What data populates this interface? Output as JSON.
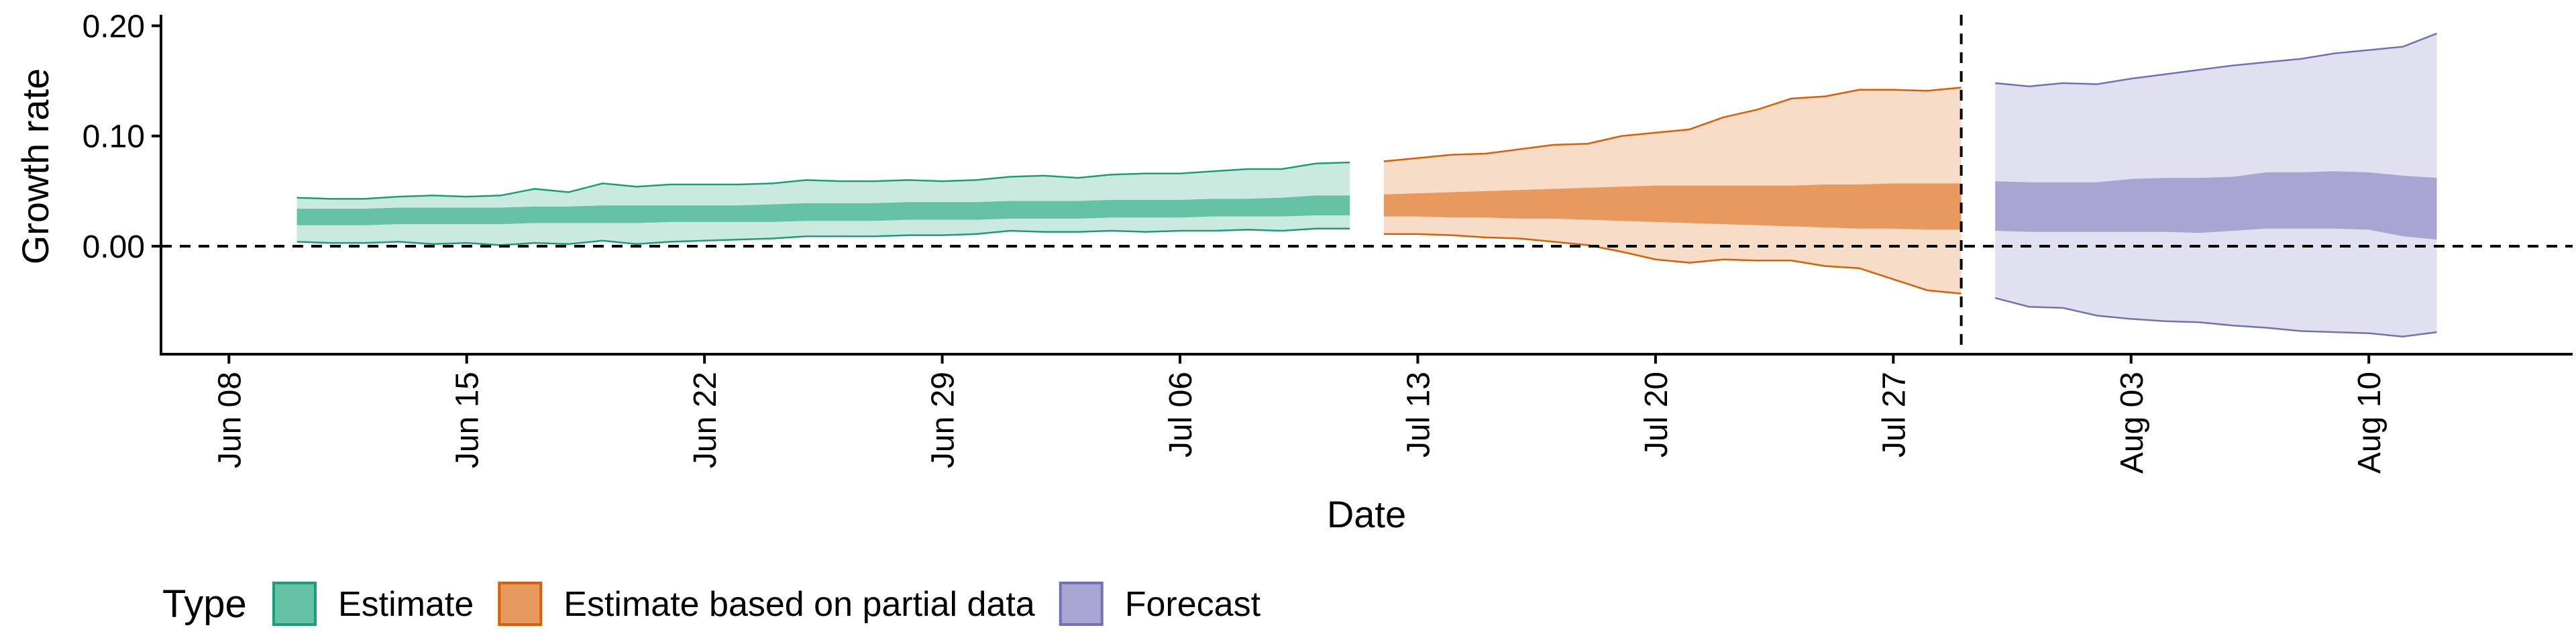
{
  "chart_data": {
    "type": "area",
    "title": "",
    "xlabel": "Date",
    "ylabel": "Growth rate",
    "x_range": [
      "2020-06-06",
      "2020-08-16"
    ],
    "ylim": [
      -0.098,
      0.21
    ],
    "y_ticks": [
      0.0,
      0.1,
      0.2
    ],
    "y_tick_labels": [
      "0.00",
      "0.10",
      "0.20"
    ],
    "x_ticks": [
      "2020-06-08",
      "2020-06-15",
      "2020-06-22",
      "2020-06-29",
      "2020-07-06",
      "2020-07-13",
      "2020-07-20",
      "2020-07-27",
      "2020-08-03",
      "2020-08-10"
    ],
    "x_tick_labels": [
      "Jun 08",
      "Jun 15",
      "Jun 22",
      "Jun 29",
      "Jul 06",
      "Jul 13",
      "Jul 20",
      "Jul 27",
      "Aug 03",
      "Aug 10"
    ],
    "reference_lines": {
      "horizontal_y": 0.0,
      "vertical_date": "2020-07-29"
    },
    "grid": false,
    "legend": {
      "title": "Type",
      "position": "bottom-left"
    },
    "series": [
      {
        "name": "Estimate",
        "fill_color": "#66C2A5",
        "line_color": "#1B9E77",
        "x": [
          "2020-06-10",
          "2020-06-11",
          "2020-06-12",
          "2020-06-13",
          "2020-06-14",
          "2020-06-15",
          "2020-06-16",
          "2020-06-17",
          "2020-06-18",
          "2020-06-19",
          "2020-06-20",
          "2020-06-21",
          "2020-06-22",
          "2020-06-23",
          "2020-06-24",
          "2020-06-25",
          "2020-06-26",
          "2020-06-27",
          "2020-06-28",
          "2020-06-29",
          "2020-06-30",
          "2020-07-01",
          "2020-07-02",
          "2020-07-03",
          "2020-07-04",
          "2020-07-05",
          "2020-07-06",
          "2020-07-07",
          "2020-07-08",
          "2020-07-09",
          "2020-07-10",
          "2020-07-11"
        ],
        "upper_90": [
          0.044,
          0.043,
          0.043,
          0.045,
          0.046,
          0.045,
          0.046,
          0.052,
          0.049,
          0.057,
          0.054,
          0.056,
          0.056,
          0.056,
          0.057,
          0.06,
          0.059,
          0.059,
          0.06,
          0.059,
          0.06,
          0.063,
          0.064,
          0.062,
          0.065,
          0.066,
          0.066,
          0.068,
          0.07,
          0.07,
          0.075,
          0.076
        ],
        "upper_50": [
          0.034,
          0.034,
          0.034,
          0.035,
          0.035,
          0.035,
          0.035,
          0.036,
          0.036,
          0.037,
          0.037,
          0.037,
          0.037,
          0.037,
          0.038,
          0.039,
          0.039,
          0.039,
          0.04,
          0.04,
          0.04,
          0.041,
          0.041,
          0.041,
          0.042,
          0.042,
          0.042,
          0.043,
          0.043,
          0.044,
          0.046,
          0.046
        ],
        "lower_50": [
          0.019,
          0.019,
          0.019,
          0.02,
          0.02,
          0.02,
          0.02,
          0.021,
          0.021,
          0.021,
          0.021,
          0.022,
          0.022,
          0.022,
          0.022,
          0.023,
          0.023,
          0.023,
          0.024,
          0.024,
          0.024,
          0.025,
          0.025,
          0.025,
          0.026,
          0.026,
          0.026,
          0.027,
          0.027,
          0.027,
          0.028,
          0.028
        ],
        "lower_90": [
          0.004,
          0.003,
          0.003,
          0.004,
          0.002,
          0.003,
          0.001,
          0.003,
          0.002,
          0.005,
          0.002,
          0.004,
          0.005,
          0.006,
          0.007,
          0.009,
          0.009,
          0.009,
          0.01,
          0.01,
          0.011,
          0.014,
          0.013,
          0.013,
          0.014,
          0.013,
          0.014,
          0.014,
          0.015,
          0.014,
          0.016,
          0.016
        ]
      },
      {
        "name": "Estimate based on partial data",
        "fill_color": "#E89A5E",
        "line_color": "#D95F02",
        "x": [
          "2020-07-12",
          "2020-07-13",
          "2020-07-14",
          "2020-07-15",
          "2020-07-16",
          "2020-07-17",
          "2020-07-18",
          "2020-07-19",
          "2020-07-20",
          "2020-07-21",
          "2020-07-22",
          "2020-07-23",
          "2020-07-24",
          "2020-07-25",
          "2020-07-26",
          "2020-07-27",
          "2020-07-28",
          "2020-07-29"
        ],
        "upper_90": [
          0.077,
          0.08,
          0.083,
          0.084,
          0.088,
          0.092,
          0.093,
          0.1,
          0.103,
          0.106,
          0.117,
          0.124,
          0.134,
          0.136,
          0.142,
          0.142,
          0.141,
          0.144
        ],
        "upper_50": [
          0.047,
          0.048,
          0.049,
          0.05,
          0.051,
          0.052,
          0.053,
          0.054,
          0.055,
          0.055,
          0.055,
          0.055,
          0.055,
          0.056,
          0.056,
          0.057,
          0.057,
          0.057
        ],
        "lower_50": [
          0.027,
          0.027,
          0.026,
          0.026,
          0.025,
          0.025,
          0.024,
          0.023,
          0.022,
          0.021,
          0.02,
          0.019,
          0.018,
          0.017,
          0.016,
          0.016,
          0.015,
          0.015
        ],
        "lower_90": [
          0.011,
          0.011,
          0.01,
          0.008,
          0.007,
          0.004,
          0.001,
          -0.005,
          -0.012,
          -0.015,
          -0.012,
          -0.013,
          -0.013,
          -0.018,
          -0.02,
          -0.03,
          -0.04,
          -0.043
        ]
      },
      {
        "name": "Forecast",
        "fill_color": "#A8A5D3",
        "line_color": "#7570B3",
        "x": [
          "2020-07-30",
          "2020-07-31",
          "2020-08-01",
          "2020-08-02",
          "2020-08-03",
          "2020-08-04",
          "2020-08-05",
          "2020-08-06",
          "2020-08-07",
          "2020-08-08",
          "2020-08-09",
          "2020-08-10",
          "2020-08-11",
          "2020-08-12"
        ],
        "upper_90": [
          0.148,
          0.145,
          0.148,
          0.147,
          0.152,
          0.156,
          0.16,
          0.164,
          0.167,
          0.17,
          0.175,
          0.178,
          0.181,
          0.193
        ],
        "upper_50": [
          0.059,
          0.058,
          0.058,
          0.058,
          0.061,
          0.062,
          0.062,
          0.063,
          0.067,
          0.067,
          0.068,
          0.067,
          0.064,
          0.062
        ],
        "lower_50": [
          0.014,
          0.013,
          0.013,
          0.013,
          0.013,
          0.013,
          0.012,
          0.014,
          0.016,
          0.016,
          0.016,
          0.015,
          0.009,
          0.006
        ],
        "lower_90": [
          -0.047,
          -0.055,
          -0.056,
          -0.063,
          -0.066,
          -0.068,
          -0.069,
          -0.072,
          -0.074,
          -0.077,
          -0.078,
          -0.079,
          -0.082,
          -0.078
        ]
      }
    ]
  }
}
